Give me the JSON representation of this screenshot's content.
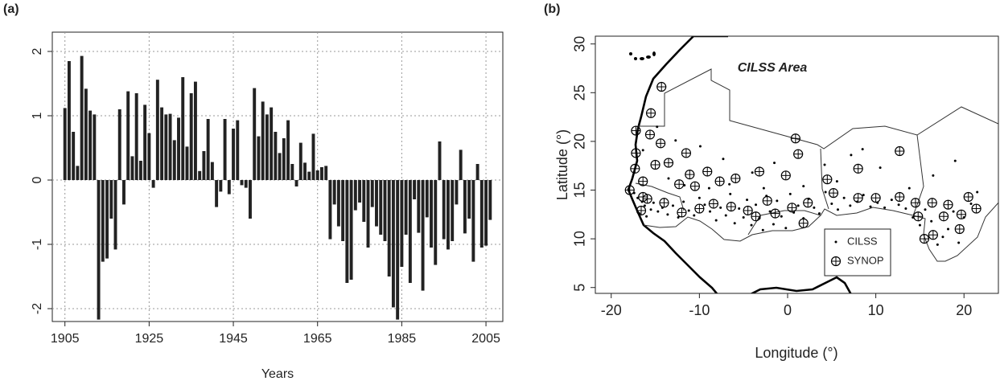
{
  "chart_data": [
    {
      "type": "bar",
      "panel_label": "(a)",
      "xlabel": "Years",
      "color": "#222222",
      "x": [
        1905,
        1906,
        1907,
        1908,
        1909,
        1910,
        1911,
        1912,
        1913,
        1914,
        1915,
        1916,
        1917,
        1918,
        1919,
        1920,
        1921,
        1922,
        1923,
        1924,
        1925,
        1926,
        1927,
        1928,
        1929,
        1930,
        1931,
        1932,
        1933,
        1934,
        1935,
        1936,
        1937,
        1938,
        1939,
        1940,
        1941,
        1942,
        1943,
        1944,
        1945,
        1946,
        1947,
        1948,
        1949,
        1950,
        1951,
        1952,
        1953,
        1954,
        1955,
        1956,
        1957,
        1958,
        1959,
        1960,
        1961,
        1962,
        1963,
        1964,
        1965,
        1966,
        1967,
        1968,
        1969,
        1970,
        1971,
        1972,
        1973,
        1974,
        1975,
        1976,
        1977,
        1978,
        1979,
        1980,
        1981,
        1982,
        1983,
        1984,
        1985,
        1986,
        1987,
        1988,
        1989,
        1990,
        1991,
        1992,
        1993,
        1994,
        1995,
        1996,
        1997,
        1998,
        1999,
        2000,
        2001,
        2002,
        2003,
        2004,
        2005,
        2006
      ],
      "values": [
        1.12,
        1.85,
        0.75,
        0.22,
        1.93,
        1.42,
        1.08,
        1.02,
        -2.17,
        -1.27,
        -1.22,
        -0.6,
        -1.08,
        1.1,
        -0.38,
        1.38,
        0.37,
        1.35,
        0.3,
        1.17,
        0.73,
        -0.12,
        1.56,
        1.13,
        1.02,
        1.03,
        0.62,
        0.97,
        1.6,
        0.52,
        1.35,
        1.53,
        0.14,
        0.45,
        0.95,
        0.28,
        -0.42,
        -0.18,
        0.95,
        -0.22,
        0.8,
        0.93,
        -0.08,
        -0.12,
        -0.6,
        1.43,
        0.68,
        1.22,
        1.02,
        1.13,
        0.75,
        0.42,
        0.65,
        0.93,
        0.25,
        -0.1,
        0.58,
        0.27,
        0.13,
        0.72,
        0.15,
        0.2,
        0.22,
        -0.92,
        -0.38,
        -0.72,
        -0.95,
        -1.6,
        -1.55,
        -0.47,
        -0.35,
        -0.65,
        -1.05,
        -0.42,
        -0.72,
        -0.85,
        -0.95,
        -1.5,
        -1.98,
        -2.17,
        -1.35,
        -0.85,
        -1.6,
        -0.3,
        -0.82,
        -1.72,
        -0.58,
        -1.05,
        -1.32,
        0.6,
        -0.92,
        -1.08,
        -0.95,
        -0.38,
        0.47,
        -0.83,
        -0.6,
        -1.27,
        0.25,
        -1.05,
        -1.02,
        -0.62
      ],
      "xlim": [
        1902,
        2009
      ],
      "xticks": [
        1905,
        1925,
        1945,
        1965,
        1985,
        2005
      ],
      "ylim": [
        -2.2,
        2.3
      ],
      "yticks": [
        -2,
        -1,
        0,
        1,
        2
      ],
      "grid": true
    },
    {
      "type": "scatter",
      "panel_label": "(b)",
      "annotation": "CILSS Area",
      "xlabel": "Longitude (°)",
      "ylabel": "Latitude (°)",
      "xlim": [
        -21.8,
        23.9
      ],
      "xticks": [
        -20,
        -10,
        0,
        10,
        20
      ],
      "ylim": [
        4.4,
        30.8
      ],
      "yticks": [
        5,
        10,
        15,
        20,
        25,
        30
      ],
      "series": [
        {
          "name": "CILSS",
          "marker": "dot",
          "color": "#000000",
          "x": [
            -17.4,
            -17,
            -16.5,
            -16.2,
            -16.8,
            -16,
            -15.5,
            -15.2,
            -14.7,
            -14.2,
            -13.6,
            -13,
            -12.4,
            -11.8,
            -11.2,
            -10.6,
            -10,
            -9.4,
            -8.8,
            -8.1,
            -7.6,
            -7,
            -6.5,
            -6,
            -5.5,
            -5,
            -4.6,
            -4.1,
            -3.6,
            -3.2,
            -2.8,
            -2.4,
            -2,
            -1.6,
            -1.2,
            -0.7,
            -0.2,
            0.3,
            0.7,
            1.2,
            1.8,
            2.4,
            3,
            3.6,
            4.3,
            5,
            5.7,
            6.4,
            7.1,
            7.9,
            8.6,
            9.4,
            10.2,
            11,
            11.8,
            12.6,
            13.4,
            14.2,
            15,
            15.6,
            16.3,
            17,
            17.6,
            18.2,
            18.8,
            19.4,
            20,
            20.8,
            21.5,
            19,
            16.5,
            8.5,
            7.2,
            10.5,
            4.2,
            -1.5,
            -4,
            -7.3,
            -9.9,
            -12.7,
            -14.8,
            -16.4,
            -13.5,
            -11.7,
            -8.9,
            -6.6,
            -2.7,
            1.8,
            5.6,
            13.8
          ],
          "y": [
            14.7,
            14.2,
            13.8,
            13.4,
            12.6,
            12.3,
            13,
            13.7,
            12.8,
            13.2,
            12.5,
            13.4,
            12.2,
            13.8,
            12.9,
            12.4,
            14.2,
            13.5,
            12.8,
            11.9,
            13.2,
            12.4,
            14.6,
            11.6,
            13.1,
            12.2,
            14,
            11.4,
            13.5,
            12.1,
            10.9,
            14.4,
            12.8,
            11.5,
            13.9,
            12.3,
            11.1,
            14.6,
            12.7,
            13.4,
            12.1,
            14.1,
            13.2,
            12.6,
            14.8,
            13.6,
            13,
            14.2,
            13.4,
            13.8,
            14.5,
            13.3,
            13.7,
            13.2,
            14,
            13.5,
            13.1,
            12.2,
            11.4,
            13,
            11.8,
            9.4,
            10.2,
            11,
            12.8,
            9.6,
            12.2,
            13.6,
            14.8,
            18,
            16.5,
            19.2,
            18.6,
            17.3,
            17.6,
            17.8,
            16.8,
            18.2,
            19.5,
            20.1,
            21.5,
            19.1,
            16.2,
            15.5,
            15.2,
            15.6,
            15.2,
            15.4,
            15.9,
            15.2
          ]
        },
        {
          "name": "SYNOP",
          "marker": "circle-cross",
          "color": "#000000",
          "x": [
            -14.3,
            -15.5,
            -15.6,
            -17.2,
            -14.4,
            -11.5,
            -17.2,
            0.9,
            1.2,
            12.7,
            8,
            4.5,
            -3.2,
            -0.2,
            -9.1,
            -11.1,
            -13.5,
            -15,
            -17.3,
            -12.3,
            -10.5,
            -7.7,
            -5.9,
            -16.4,
            -17.9,
            -15.9,
            -16.6,
            -14,
            -12,
            -10,
            -8.4,
            -6.4,
            -4.5,
            -2.3,
            -1.4,
            0.5,
            2.3,
            5.2,
            8,
            10,
            12.7,
            14.5,
            16.4,
            14.8,
            17.7,
            19.7,
            20.5,
            21.4,
            19.5,
            16.5,
            15.5,
            18.2,
            -3.6,
            1.8,
            -16.4
          ],
          "y": [
            25.6,
            22.9,
            20.7,
            18.8,
            19.8,
            18.8,
            21.1,
            20.3,
            18.7,
            19,
            17.2,
            16.1,
            16.9,
            16.5,
            16.9,
            16.6,
            17.8,
            17.6,
            17.2,
            15.6,
            15.4,
            15.9,
            16.2,
            15.9,
            15,
            14.1,
            12.9,
            13.7,
            12.7,
            13.1,
            13.6,
            13.3,
            12.9,
            13.9,
            12.6,
            13.2,
            13.7,
            14.7,
            14.2,
            14.2,
            14.3,
            13.7,
            13.7,
            12.3,
            12.3,
            12.5,
            14.3,
            13.1,
            11,
            10.4,
            10,
            13.5,
            12.3,
            11.6,
            14.3
          ]
        }
      ]
    }
  ]
}
